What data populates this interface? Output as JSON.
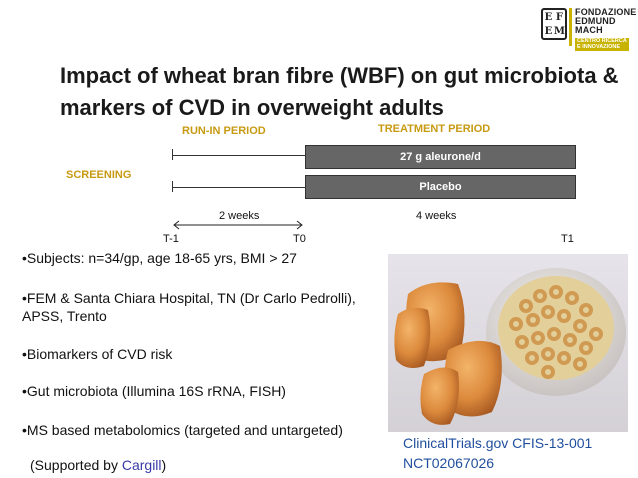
{
  "logo": {
    "mark_letters": [
      "E",
      "F",
      "E",
      "M"
    ],
    "lines": [
      "FONDAZIONE",
      "EDMUND",
      "MACH"
    ],
    "badge": [
      "CENTRO RICERCA",
      "E INNOVAZIONE"
    ]
  },
  "title": "Impact of wheat bran fibre (WBF) on gut microbiota & markers of CVD in overweight adults",
  "timeline": {
    "screening": "SCREENING",
    "run_in": "RUN-IN PERIOD",
    "treatment": "TREATMENT PERIOD",
    "arms": [
      "27 g aleurone/d",
      "Placebo"
    ],
    "run_in_duration": "2 weeks",
    "treatment_duration": "4 weeks",
    "ticks": [
      "T-1",
      "T0",
      "T1"
    ]
  },
  "bullets": [
    "•Subjects: n=34/gp, age 18-65 yrs, BMI > 27",
    "•FEM & Santa Chiara Hospital, TN (Dr Carlo Pedrolli), APSS, Trento",
    "•Biomarkers of CVD risk",
    "•Gut microbiota (Illumina 16S rRNA, FISH)",
    "•MS based metabolomics (targeted and untargeted)"
  ],
  "support": {
    "prefix": "(Supported by ",
    "sponsor": "Cargill",
    "suffix": ")"
  },
  "trial_ids": [
    "ClinicalTrials.gov CFIS-13-001",
    "NCT02067026"
  ],
  "colors": {
    "accent": "#c79a12",
    "bar": "#666666",
    "sponsor": "#3a3aa8",
    "trial": "#1f4e9c",
    "logo": "#c8b400"
  }
}
